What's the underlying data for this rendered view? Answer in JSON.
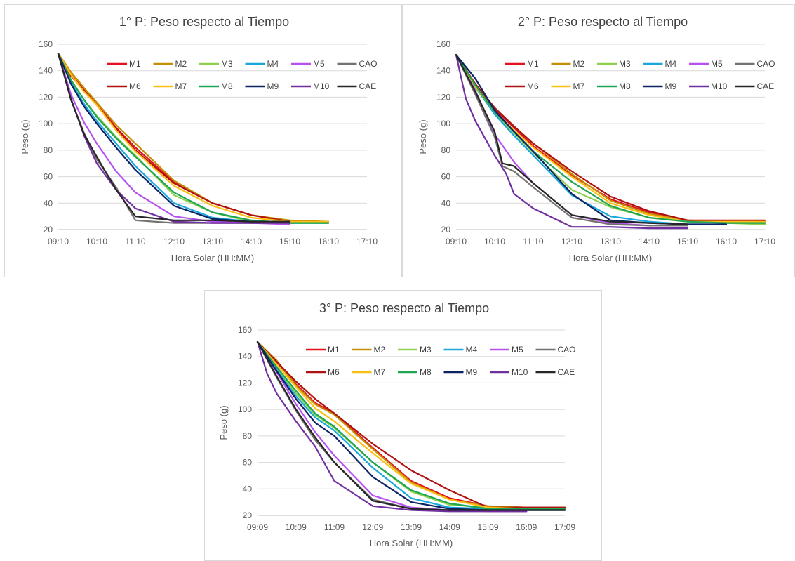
{
  "colors": {
    "M1": "#e3101d",
    "M2": "#c38f07",
    "M3": "#8fd14f",
    "M4": "#19a7dd",
    "M5": "#b651f0",
    "CAO": "#767171",
    "M6": "#b01010",
    "M7": "#fcbf13",
    "M8": "#1ea653",
    "M9": "#0c2464",
    "M10": "#7030a0",
    "CAE": "#262626"
  },
  "chart_data": [
    {
      "type": "line",
      "title": "1° P: Peso respecto al Tiempo",
      "xlabel": "Hora Solar (HH:MM)",
      "ylabel": "Peso (g)",
      "xlim": [
        0,
        8
      ],
      "ylim": [
        20,
        160
      ],
      "yticks": [
        20,
        40,
        60,
        80,
        100,
        120,
        140,
        160
      ],
      "xtick_labels": [
        "09:10",
        "10:10",
        "11:10",
        "12:10",
        "13:10",
        "14:10",
        "15:10",
        "16:10",
        "17:10"
      ],
      "grid": "horizontal",
      "legend": "top, inside plot, 2 rows x 6 columns",
      "legend_order": [
        "M1",
        "M2",
        "M3",
        "M4",
        "M5",
        "CAO",
        "M6",
        "M7",
        "M8",
        "M9",
        "M10",
        "CAE"
      ],
      "series": [
        {
          "name": "M1",
          "x": [
            0,
            0.33,
            0.67,
            1,
            1.5,
            2,
            3,
            4,
            5,
            6,
            7
          ],
          "y": [
            153,
            137,
            126,
            115,
            97,
            82,
            56,
            40,
            31,
            26,
            26
          ]
        },
        {
          "name": "M2",
          "x": [
            0,
            0.33,
            0.67,
            1,
            1.5,
            2,
            3,
            4,
            5,
            6,
            7
          ],
          "y": [
            153,
            139,
            127,
            116,
            99,
            85,
            57,
            40,
            31,
            27,
            26
          ]
        },
        {
          "name": "M3",
          "x": [
            0,
            0.33,
            0.67,
            1,
            1.5,
            2,
            3,
            4,
            5,
            6,
            7
          ],
          "y": [
            153,
            133,
            118,
            106,
            90,
            76,
            46,
            33,
            26,
            25,
            25
          ]
        },
        {
          "name": "M4",
          "x": [
            0,
            0.33,
            0.67,
            1,
            1.5,
            2,
            3,
            4,
            5,
            6,
            7
          ],
          "y": [
            153,
            131,
            115,
            102,
            85,
            68,
            40,
            29,
            26,
            25,
            25
          ]
        },
        {
          "name": "M5",
          "x": [
            0,
            0.33,
            0.67,
            1,
            1.5,
            2,
            3,
            4,
            5,
            6
          ],
          "y": [
            153,
            122,
            101,
            85,
            64,
            48,
            30,
            26,
            25,
            24
          ]
        },
        {
          "name": "CAO",
          "x": [
            0,
            0.33,
            0.67,
            1,
            1.5,
            2,
            3,
            4,
            5,
            6
          ],
          "y": [
            153,
            118,
            93,
            73,
            52,
            27,
            25,
            25,
            25,
            25
          ]
        },
        {
          "name": "M6",
          "x": [
            0,
            0.33,
            0.67,
            1,
            1.5,
            2,
            3,
            4,
            5,
            6,
            7
          ],
          "y": [
            153,
            136,
            125,
            114,
            96,
            80,
            55,
            40,
            31,
            26,
            26
          ]
        },
        {
          "name": "M7",
          "x": [
            0,
            0.33,
            0.67,
            1,
            1.5,
            2,
            3,
            4,
            5,
            6,
            7
          ],
          "y": [
            153,
            137,
            124,
            114,
            95,
            79,
            53,
            38,
            29,
            26,
            26
          ]
        },
        {
          "name": "M8",
          "x": [
            0,
            0.33,
            0.67,
            1,
            1.5,
            2,
            3,
            4,
            5,
            6,
            7
          ],
          "y": [
            153,
            133,
            118,
            105,
            89,
            75,
            48,
            33,
            27,
            25,
            25
          ]
        },
        {
          "name": "M9",
          "x": [
            0,
            0.33,
            0.67,
            1,
            1.5,
            2,
            3,
            4,
            5,
            6
          ],
          "y": [
            153,
            130,
            113,
            100,
            82,
            65,
            38,
            28,
            26,
            26
          ]
        },
        {
          "name": "M10",
          "x": [
            0,
            0.33,
            0.67,
            1,
            1.5,
            2,
            3,
            4,
            5,
            6
          ],
          "y": [
            153,
            119,
            91,
            70,
            50,
            36,
            26,
            25,
            25,
            25
          ]
        },
        {
          "name": "CAE",
          "x": [
            0,
            0.33,
            0.67,
            1,
            1.5,
            2,
            3,
            4,
            5,
            6
          ],
          "y": [
            153,
            118,
            92,
            75,
            50,
            30,
            27,
            27,
            26,
            26
          ]
        }
      ]
    },
    {
      "type": "line",
      "title": "2° P: Peso respecto al Tiempo",
      "xlabel": "Hora Solar (HH:MM)",
      "ylabel": "Peso (g)",
      "xlim": [
        0,
        8
      ],
      "ylim": [
        20,
        160
      ],
      "yticks": [
        20,
        40,
        60,
        80,
        100,
        120,
        140,
        160
      ],
      "xtick_labels": [
        "09:10",
        "10:10",
        "11:10",
        "12:10",
        "13:10",
        "14:10",
        "15:10",
        "16:10",
        "17:10"
      ],
      "grid": "horizontal",
      "legend": "top, inside plot, 2 rows x 6 columns",
      "legend_order": [
        "M1",
        "M2",
        "M3",
        "M4",
        "M5",
        "CAO",
        "M6",
        "M7",
        "M8",
        "M9",
        "M10",
        "CAE"
      ],
      "series": [
        {
          "name": "M1",
          "x": [
            0,
            0.5,
            1,
            1.5,
            2,
            3,
            4,
            5,
            6,
            7,
            8
          ],
          "y": [
            152,
            128,
            111,
            97,
            83,
            61,
            43,
            33,
            27,
            26,
            26
          ]
        },
        {
          "name": "M2",
          "x": [
            0,
            0.5,
            1,
            1.5,
            2,
            3,
            4,
            5,
            6,
            7,
            8
          ],
          "y": [
            152,
            129,
            112,
            98,
            85,
            62,
            42,
            32,
            27,
            26,
            26
          ]
        },
        {
          "name": "M3",
          "x": [
            0,
            0.5,
            1,
            1.5,
            2,
            3,
            4,
            5,
            6,
            7,
            8
          ],
          "y": [
            152,
            127,
            108,
            93,
            78,
            50,
            37,
            29,
            26,
            25,
            24
          ]
        },
        {
          "name": "M4",
          "x": [
            0,
            0.5,
            1,
            1.5,
            2,
            3,
            4,
            5,
            6,
            7
          ],
          "y": [
            152,
            128,
            107,
            91,
            76,
            46,
            30,
            26,
            24,
            24
          ]
        },
        {
          "name": "M5",
          "x": [
            0,
            0.5,
            1,
            1.5,
            2,
            3,
            4,
            5,
            6
          ],
          "y": [
            152,
            125,
            92,
            71,
            55,
            31,
            25,
            23,
            23
          ]
        },
        {
          "name": "CAO",
          "x": [
            0,
            0.5,
            1,
            1.2,
            1.5,
            2,
            3,
            4,
            5,
            6
          ],
          "y": [
            152,
            122,
            90,
            68,
            64,
            52,
            29,
            24,
            23,
            23
          ]
        },
        {
          "name": "M6",
          "x": [
            0,
            0.5,
            1,
            1.5,
            2,
            3,
            4,
            5,
            6,
            7,
            8
          ],
          "y": [
            152,
            130,
            112,
            98,
            85,
            64,
            45,
            34,
            27,
            27,
            27
          ]
        },
        {
          "name": "M7",
          "x": [
            0,
            0.5,
            1,
            1.5,
            2,
            3,
            4,
            5,
            6,
            7,
            8
          ],
          "y": [
            152,
            128,
            109,
            95,
            82,
            60,
            40,
            31,
            26,
            26,
            26
          ]
        },
        {
          "name": "M8",
          "x": [
            0,
            0.5,
            1,
            1.5,
            2,
            3,
            4,
            5,
            6,
            7,
            8
          ],
          "y": [
            152,
            129,
            109,
            94,
            79,
            56,
            38,
            29,
            26,
            25,
            25
          ]
        },
        {
          "name": "M9",
          "x": [
            0,
            0.5,
            1,
            1.5,
            2,
            3,
            4,
            5,
            6,
            7
          ],
          "y": [
            152,
            134,
            110,
            94,
            79,
            47,
            27,
            25,
            24,
            24
          ]
        },
        {
          "name": "M10",
          "x": [
            0,
            0.25,
            0.5,
            1,
            1.3,
            1.5,
            2,
            3,
            4,
            5,
            6
          ],
          "y": [
            152,
            119,
            102,
            76,
            62,
            47,
            36,
            22,
            22,
            21,
            21
          ]
        },
        {
          "name": "CAE",
          "x": [
            0,
            0.5,
            1,
            1.2,
            1.5,
            2,
            3,
            4,
            5,
            6
          ],
          "y": [
            152,
            124,
            94,
            70,
            68,
            55,
            31,
            26,
            25,
            24
          ]
        }
      ]
    },
    {
      "type": "line",
      "title": "3° P: Peso respecto al Tiempo",
      "xlabel": "Hora Solar (HH:MM)",
      "ylabel": "Peso (g)",
      "xlim": [
        0,
        8
      ],
      "ylim": [
        20,
        160
      ],
      "yticks": [
        20,
        40,
        60,
        80,
        100,
        120,
        140,
        160
      ],
      "xtick_labels": [
        "09:09",
        "10:09",
        "11:09",
        "12:09",
        "13:09",
        "14:09",
        "15:09",
        "16:09",
        "17:09"
      ],
      "grid": "horizontal",
      "legend": "top, inside plot, 2 rows x 6 columns",
      "legend_order": [
        "M1",
        "M2",
        "M3",
        "M4",
        "M5",
        "CAO",
        "M6",
        "M7",
        "M8",
        "M9",
        "M10",
        "CAE"
      ],
      "series": [
        {
          "name": "M1",
          "x": [
            0,
            0.5,
            1,
            1.5,
            2,
            3,
            4,
            5,
            6,
            7,
            8
          ],
          "y": [
            151,
            136,
            119,
            105,
            97,
            71,
            46,
            33,
            27,
            26,
            26
          ]
        },
        {
          "name": "M2",
          "x": [
            0,
            0.5,
            1,
            1.5,
            2,
            3,
            4,
            5,
            6,
            7,
            8
          ],
          "y": [
            151,
            137,
            118,
            104,
            96,
            70,
            45,
            32,
            27,
            26,
            26
          ]
        },
        {
          "name": "M3",
          "x": [
            0,
            0.5,
            1,
            1.5,
            2,
            3,
            4,
            5,
            6,
            7,
            8
          ],
          "y": [
            151,
            131,
            112,
            96,
            86,
            60,
            38,
            28,
            26,
            25,
            25
          ]
        },
        {
          "name": "M4",
          "x": [
            0,
            0.5,
            1,
            1.5,
            2,
            3,
            4,
            5,
            6,
            7,
            8
          ],
          "y": [
            151,
            130,
            110,
            94,
            84,
            56,
            33,
            26,
            25,
            24,
            24
          ]
        },
        {
          "name": "M5",
          "x": [
            0,
            0.5,
            1,
            1.5,
            2,
            3,
            4,
            5,
            6,
            7
          ],
          "y": [
            151,
            128,
            104,
            83,
            65,
            35,
            26,
            24,
            23,
            23
          ]
        },
        {
          "name": "CAO",
          "x": [
            0,
            0.5,
            1,
            1.5,
            2,
            3,
            4,
            5,
            6,
            7,
            8
          ],
          "y": [
            151,
            124,
            99,
            77,
            60,
            32,
            25,
            24,
            24,
            24,
            24
          ]
        },
        {
          "name": "M6",
          "x": [
            0,
            0.5,
            1,
            1.5,
            2,
            3,
            4,
            5,
            6,
            7,
            8
          ],
          "y": [
            151,
            136,
            121,
            108,
            97,
            74,
            54,
            39,
            26,
            26,
            26
          ]
        },
        {
          "name": "M7",
          "x": [
            0,
            0.5,
            1,
            1.5,
            2,
            3,
            4,
            5,
            6,
            7,
            8
          ],
          "y": [
            151,
            134,
            117,
            101,
            91,
            67,
            44,
            32,
            26,
            25,
            25
          ]
        },
        {
          "name": "M8",
          "x": [
            0,
            0.5,
            1,
            1.5,
            2,
            3,
            4,
            5,
            6,
            7,
            8
          ],
          "y": [
            151,
            132,
            114,
            97,
            87,
            60,
            39,
            29,
            25,
            25,
            25
          ]
        },
        {
          "name": "M9",
          "x": [
            0,
            0.5,
            1,
            1.5,
            2,
            3,
            4,
            5,
            6,
            7,
            8
          ],
          "y": [
            151,
            129,
            108,
            90,
            80,
            49,
            30,
            25,
            24,
            24,
            24
          ]
        },
        {
          "name": "M10",
          "x": [
            0,
            0.25,
            0.5,
            1,
            1.5,
            2,
            3,
            4,
            5,
            6,
            7
          ],
          "y": [
            151,
            127,
            112,
            91,
            72,
            46,
            27,
            24,
            23,
            23,
            23
          ]
        },
        {
          "name": "CAE",
          "x": [
            0,
            0.5,
            1,
            1.5,
            2,
            3,
            4,
            5,
            6,
            7,
            8
          ],
          "y": [
            151,
            125,
            100,
            79,
            60,
            31,
            25,
            24,
            24,
            24,
            24
          ]
        }
      ]
    }
  ]
}
